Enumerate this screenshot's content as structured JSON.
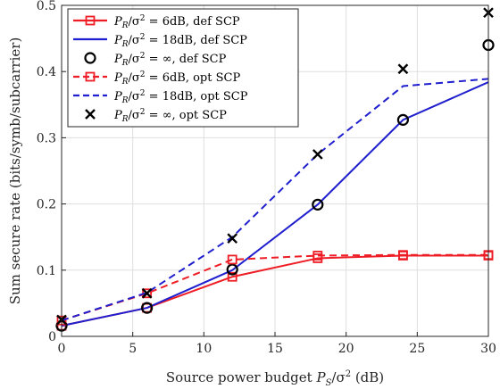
{
  "chart_data": {
    "type": "line",
    "xlabel": "Source power budget P_S/σ² (dB)",
    "xlabel_parts": {
      "before": "Source power budget ",
      "var": "P",
      "sub": "S",
      "mid": "/σ",
      "sup": "2",
      "after": " (dB)"
    },
    "ylabel": "Sum secure rate (bits/symb/subcarrier)",
    "xlim": [
      0,
      30
    ],
    "ylim": [
      0,
      0.5
    ],
    "xticks": [
      "0",
      "5",
      "10",
      "15",
      "20",
      "25",
      "30"
    ],
    "yticks": [
      "0",
      "0.1",
      "0.2",
      "0.3",
      "0.4",
      "0.5"
    ],
    "grid": true,
    "legend_position": "top-left",
    "x": [
      0,
      6,
      12,
      18,
      24,
      30
    ],
    "series": [
      {
        "name": "P_R/σ² = 6dB, def SCP",
        "name_rest": " = 6dB, def SCP",
        "color": "#ee1c24",
        "line": "solid",
        "marker": "square",
        "values": [
          0.016,
          0.043,
          0.09,
          0.118,
          0.122,
          0.122
        ]
      },
      {
        "name": "P_R/σ² = 18dB, def SCP",
        "name_rest": " = 18dB, def SCP",
        "color": "#1f1fcf",
        "line": "solid",
        "marker": "none",
        "values": [
          0.016,
          0.043,
          0.1,
          0.199,
          0.327,
          0.384
        ]
      },
      {
        "name": "P_R/σ² = ∞, def SCP",
        "name_rest": " = ∞, def SCP",
        "color": "#000000",
        "line": "none",
        "marker": "circle",
        "values": [
          0.016,
          0.043,
          0.101,
          0.199,
          0.327,
          0.44
        ]
      },
      {
        "name": "P_R/σ² = 6dB, opt SCP",
        "name_rest": " = 6dB, opt SCP",
        "color": "#ee1c24",
        "line": "dashed",
        "marker": "square",
        "values": [
          0.024,
          0.065,
          0.116,
          0.122,
          0.123,
          0.123
        ]
      },
      {
        "name": "P_R/σ² = 18dB, opt SCP",
        "name_rest": " = 18dB, opt SCP",
        "color": "#1f1fcf",
        "line": "dashed",
        "marker": "none",
        "values": [
          0.024,
          0.066,
          0.15,
          0.275,
          0.378,
          0.389
        ]
      },
      {
        "name": "P_R/σ² = ∞, opt SCP",
        "name_rest": " = ∞, opt SCP",
        "color": "#000000",
        "line": "none",
        "marker": "cross",
        "values": [
          0.025,
          0.065,
          0.148,
          0.275,
          0.404,
          0.489
        ]
      }
    ]
  }
}
